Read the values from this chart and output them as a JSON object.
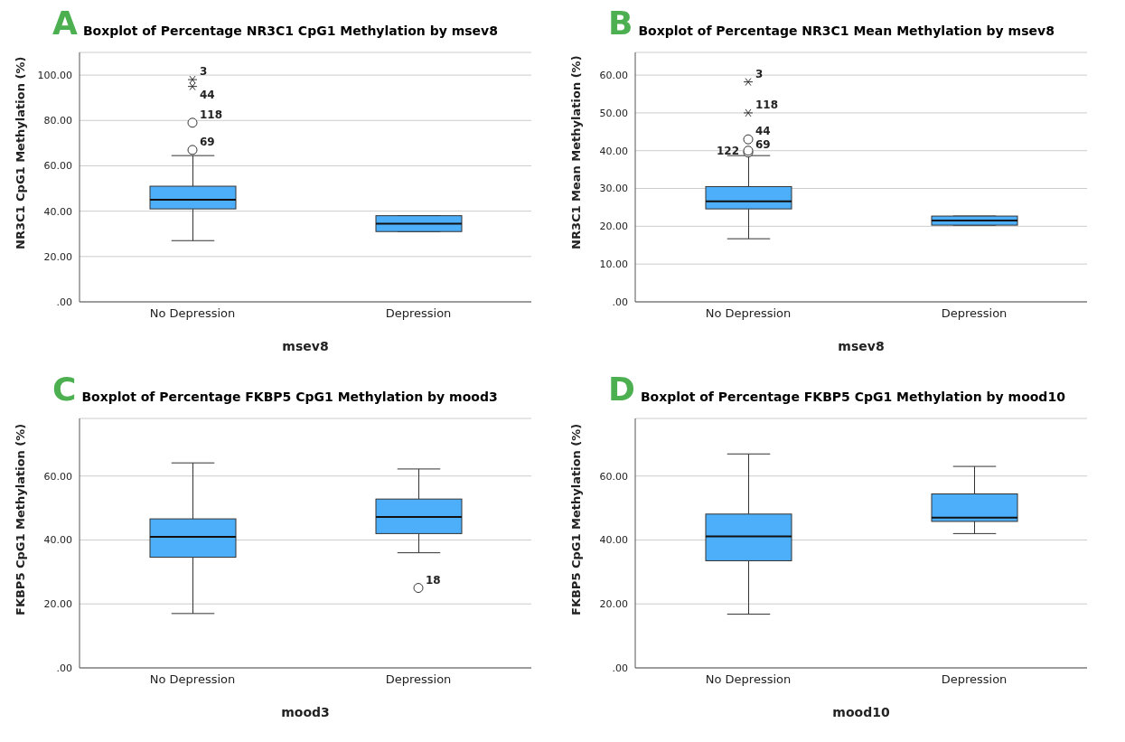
{
  "chart_data": [
    {
      "type": "box",
      "title": "Boxplot of Percentage NR3C1 CpG1 Methylation by msev8",
      "xlabel": "msev8",
      "ylabel": "NR3C1 CpG1 Methylation (%)",
      "categories": [
        "No Depression",
        "Depression"
      ],
      "color": "#4daffa",
      "grid": "y",
      "ylim": [
        0,
        110
      ],
      "yticks": [
        {
          "value": 0,
          "label": ".00"
        },
        {
          "value": 20,
          "label": "20.00"
        },
        {
          "value": 40,
          "label": "40.00"
        },
        {
          "value": 60,
          "label": "60.00"
        },
        {
          "value": 80,
          "label": "80.00"
        },
        {
          "value": 100,
          "label": "100.00"
        }
      ],
      "boxes": [
        {
          "low": 27,
          "q1": 41,
          "median": 45,
          "q3": 51,
          "high": 64.5,
          "outliers": [
            98,
            95,
            79,
            67
          ]
        },
        {
          "low": 31,
          "q1": 31,
          "median": 34.5,
          "q3": 38,
          "high": 38
        }
      ],
      "annotations": [
        "A",
        "3",
        "44",
        "118",
        "69"
      ]
    },
    {
      "type": "box",
      "title": "Boxplot of Percentage NR3C1 Mean Methylation  by msev8",
      "xlabel": "msev8",
      "ylabel": "NR3C1 Mean Methylation (%)",
      "categories": [
        "No Depression",
        "Depression"
      ],
      "color": "#4daffa",
      "grid": "y",
      "ylim": [
        0,
        66
      ],
      "yticks": [
        {
          "value": 0,
          "label": ".00"
        },
        {
          "value": 10,
          "label": "10.00"
        },
        {
          "value": 20,
          "label": "20.00"
        },
        {
          "value": 30,
          "label": "30.00"
        },
        {
          "value": 40,
          "label": "40.00"
        },
        {
          "value": 50,
          "label": "50.00"
        },
        {
          "value": 60,
          "label": "60.00"
        }
      ],
      "boxes": [
        {
          "low": 16.7,
          "q1": 24.6,
          "median": 26.6,
          "q3": 30.5,
          "high": 38.7,
          "outliers": [
            58.2,
            50,
            43,
            39.5,
            40
          ]
        },
        {
          "low": 20.3,
          "q1": 20.3,
          "median": 21.5,
          "q3": 22.7,
          "high": 22.7
        }
      ],
      "annotations": [
        "B",
        "3",
        "118",
        "44",
        "69",
        "122"
      ]
    },
    {
      "type": "box",
      "title": "Boxplot of Percentage FKBP5 CpG1 Methylation by mood3",
      "xlabel": "mood3",
      "ylabel": "FKBP5 CpG1 Methylation (%)",
      "categories": [
        "No Depression",
        "Depression"
      ],
      "color": "#4daffa",
      "grid": "y",
      "ylim": [
        0,
        78
      ],
      "yticks": [
        {
          "value": 0,
          "label": ".00"
        },
        {
          "value": 20,
          "label": "20.00"
        },
        {
          "value": 40,
          "label": "40.00"
        },
        {
          "value": 60,
          "label": "60.00"
        }
      ],
      "boxes": [
        {
          "low": 17,
          "q1": 34.6,
          "median": 41,
          "q3": 46.6,
          "high": 64.1
        },
        {
          "low": 36,
          "q1": 42,
          "median": 47.2,
          "q3": 52.8,
          "high": 62.2,
          "outliers": [
            25
          ]
        }
      ],
      "annotations": [
        "C",
        "18"
      ]
    },
    {
      "type": "box",
      "title": "Boxplot of Percentage FKBP5 CpG1 Methylation by mood10",
      "xlabel": "mood10",
      "ylabel": "FKBP5 CpG1 Methylation (%)",
      "categories": [
        "No Depression",
        "Depression"
      ],
      "color": "#4daffa",
      "grid": "y",
      "ylim": [
        0,
        78
      ],
      "yticks": [
        {
          "value": 0,
          "label": ".00"
        },
        {
          "value": 20,
          "label": "20.00"
        },
        {
          "value": 40,
          "label": "40.00"
        },
        {
          "value": 60,
          "label": "60.00"
        }
      ],
      "boxes": [
        {
          "low": 16.8,
          "q1": 33.5,
          "median": 41.1,
          "q3": 48.1,
          "high": 66.9
        },
        {
          "low": 42,
          "q1": 45.8,
          "median": 47,
          "q3": 54.4,
          "high": 63
        }
      ],
      "annotations": [
        "D"
      ]
    }
  ]
}
